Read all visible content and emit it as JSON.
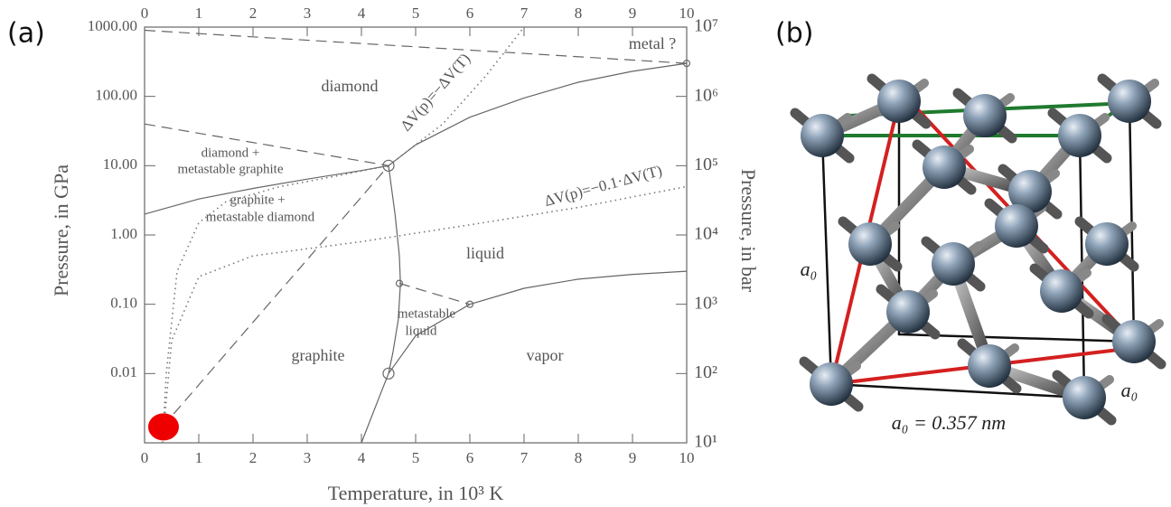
{
  "panels": {
    "a": "(a)",
    "b": "(b)"
  },
  "structure": {
    "labels": [
      "a₀",
      "a₀"
    ],
    "caption": "a₀ = 0.357 nm"
  },
  "chart_data": {
    "type": "line",
    "xlabel": "Temperature, in 10³ K",
    "ylabel": "Pressure, in GPa",
    "y2label": "Pressure, in bar",
    "xlim": [
      0,
      10
    ],
    "xticks": [
      0,
      1,
      2,
      3,
      4,
      5,
      6,
      7,
      8,
      9,
      10
    ],
    "ylim": [
      0.001,
      1000
    ],
    "ylog": true,
    "yticks": [
      {
        "value": 0.01,
        "label": "0.01"
      },
      {
        "value": 0.1,
        "label": "0.10"
      },
      {
        "value": 1,
        "label": "1.00"
      },
      {
        "value": 10,
        "label": "10.00"
      },
      {
        "value": 100,
        "label": "100.00"
      },
      {
        "value": 1000,
        "label": "1000.00"
      }
    ],
    "y2lim": [
      10,
      10000000
    ],
    "y2log": true,
    "y2ticks": [
      {
        "value": 10,
        "label": "10¹"
      },
      {
        "value": 100,
        "label": "10²"
      },
      {
        "value": 1000,
        "label": "10³"
      },
      {
        "value": 10000,
        "label": "10⁴"
      },
      {
        "value": 100000,
        "label": "10⁵"
      },
      {
        "value": 1000000,
        "label": "10⁶"
      },
      {
        "value": 10000000,
        "label": "10⁷"
      }
    ],
    "series": [
      {
        "color": "#666666",
        "style": "solid",
        "x": [
          0,
          1,
          2,
          3,
          4,
          4.5
        ],
        "values": [
          2,
          3.3,
          4.7,
          6.4,
          8.5,
          10
        ]
      },
      {
        "color": "#666666",
        "style": "solid",
        "x": [
          4.5,
          5,
          6,
          7,
          8,
          9,
          10
        ],
        "values": [
          10,
          20,
          50,
          95,
          160,
          230,
          300
        ]
      },
      {
        "color": "#666666",
        "style": "solid",
        "x": [
          4.5,
          4.62,
          4.7,
          4.72,
          4.68,
          4.58,
          4.5,
          4.3,
          4.0
        ],
        "values": [
          10,
          2,
          0.5,
          0.2,
          0.06,
          0.02,
          0.01,
          0.004,
          0.001
        ]
      },
      {
        "color": "#666666",
        "style": "solid",
        "x": [
          4.5,
          5,
          6,
          7,
          8,
          9,
          10
        ],
        "values": [
          0.01,
          0.035,
          0.1,
          0.17,
          0.23,
          0.27,
          0.3
        ]
      },
      {
        "color": "#666666",
        "style": "dashed",
        "x": [
          0,
          4.5
        ],
        "values": [
          40,
          10
        ]
      },
      {
        "color": "#666666",
        "style": "dashed",
        "x": [
          0.33,
          4.5
        ],
        "values": [
          0.0017,
          10
        ]
      },
      {
        "color": "#666666",
        "style": "dashed",
        "x": [
          4.7,
          6
        ],
        "values": [
          0.2,
          0.1
        ]
      },
      {
        "color": "#666666",
        "style": "dashed",
        "x": [
          0,
          10
        ],
        "values": [
          900,
          300
        ]
      },
      {
        "color": "#777777",
        "style": "dotted",
        "x": [
          0.33,
          0.4,
          0.6,
          1,
          1.5,
          2.5,
          3.5,
          4.5,
          5.5,
          6.3,
          7
        ],
        "values": [
          0.001,
          0.01,
          0.3,
          1.5,
          3,
          5,
          7,
          10,
          40,
          200,
          1000
        ]
      },
      {
        "color": "#777777",
        "style": "dotted",
        "x": [
          0.33,
          0.5,
          1,
          2,
          4,
          6,
          8,
          10
        ],
        "values": [
          0.001,
          0.03,
          0.25,
          0.5,
          0.8,
          1.4,
          2.5,
          5
        ]
      },
      {
        "color": "#666666",
        "style": "marker",
        "x": [
          4.5,
          4.7,
          6,
          4.5,
          10
        ],
        "values": [
          10,
          0.2,
          0.1,
          0.01,
          300
        ]
      },
      {
        "color": "#ee0000",
        "style": "dot",
        "x": [
          0.35
        ],
        "values": [
          0.0017
        ]
      }
    ],
    "annotations": [
      "diamond",
      "diamond +",
      "metastable graphite",
      "graphite +",
      "metastable diamond",
      "liquid",
      "metastable",
      "liquid",
      "graphite",
      "vapor",
      "metal ?",
      "ΔV(p)=−ΔV(T)",
      "ΔV(p)=−0.1·ΔV(T)"
    ]
  }
}
